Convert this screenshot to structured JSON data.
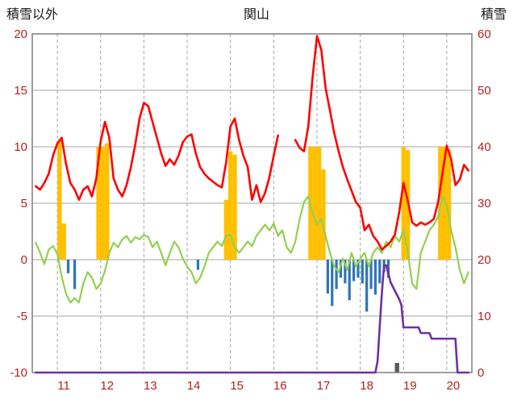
{
  "chart_data": {
    "type": "line+bar combo",
    "title": "関山",
    "left_axis": {
      "label": "積雪以外",
      "min": -10,
      "max": 20,
      "ticks": [
        -10,
        -5,
        0,
        5,
        10,
        15,
        20
      ]
    },
    "right_axis": {
      "label": "積雪",
      "min": 0,
      "max": 60,
      "ticks": [
        0,
        10,
        20,
        30,
        40,
        50,
        60
      ]
    },
    "x_axis": {
      "min": 10.42,
      "max": 20.58,
      "tick_labels": [
        "11",
        "12",
        "13",
        "14",
        "15",
        "16",
        "17",
        "18",
        "19",
        "20"
      ],
      "tick_positions": [
        11,
        12,
        13,
        14,
        15,
        16,
        17,
        18,
        19,
        20
      ],
      "gridlines": [
        11,
        12,
        13,
        14,
        15,
        16,
        17,
        18,
        19,
        20
      ]
    },
    "styles": {
      "grid_color": "#a6a6a6",
      "frame_color": "#7f7f7f",
      "axis_text_color": "#b22222",
      "title_color": "#1a1a1a",
      "background": "#ffffff"
    },
    "series": [
      {
        "name": "orange-bars",
        "type": "bar",
        "axis": "left",
        "color": "#ffc000",
        "base": 0,
        "bar_width": 0.1,
        "points": [
          [
            11.05,
            10.6
          ],
          [
            11.15,
            3.2
          ],
          [
            11.95,
            10.0
          ],
          [
            12.05,
            10.0
          ],
          [
            12.15,
            10.3
          ],
          [
            14.9,
            5.3
          ],
          [
            15.0,
            9.6
          ],
          [
            15.1,
            9.3
          ],
          [
            16.85,
            10.0
          ],
          [
            16.95,
            10.0
          ],
          [
            17.05,
            10.0
          ],
          [
            17.15,
            8.0
          ],
          [
            19.0,
            10.0
          ],
          [
            19.1,
            9.7
          ],
          [
            19.85,
            10.0
          ],
          [
            19.95,
            10.0
          ],
          [
            20.05,
            9.7
          ]
        ]
      },
      {
        "name": "blue-bars",
        "type": "bar",
        "axis": "left",
        "color": "#2e75b6",
        "base": 0,
        "bar_width": 0.06,
        "points": [
          [
            11.25,
            -1.2
          ],
          [
            11.4,
            -2.6
          ],
          [
            14.25,
            -0.9
          ],
          [
            17.25,
            -3.0
          ],
          [
            17.35,
            -4.1
          ],
          [
            17.45,
            -2.6
          ],
          [
            17.55,
            -1.6
          ],
          [
            17.65,
            -2.1
          ],
          [
            17.75,
            -3.6
          ],
          [
            17.85,
            -1.9
          ],
          [
            17.95,
            -1.6
          ],
          [
            18.05,
            -2.1
          ],
          [
            18.15,
            -4.6
          ],
          [
            18.25,
            -2.6
          ],
          [
            18.35,
            -3.1
          ],
          [
            18.45,
            -2.1
          ],
          [
            18.55,
            -1.1
          ],
          [
            18.65,
            -1.6
          ]
        ]
      },
      {
        "name": "gray-marker-bar",
        "type": "bar",
        "axis": "left",
        "color": "#595959",
        "base": -10,
        "bar_width": 0.1,
        "points": [
          [
            18.85,
            -9.15
          ]
        ]
      },
      {
        "name": "green-line",
        "type": "line",
        "axis": "left",
        "color": "#92d050",
        "width": 2.2,
        "x_start": 10.5,
        "x_step": 0.1,
        "values": [
          1.5,
          0.6,
          -0.4,
          0.9,
          1.2,
          0.5,
          -1.5,
          -3.0,
          -3.8,
          -3.4,
          -3.8,
          -2.1,
          -1.1,
          -1.6,
          -2.6,
          -2.1,
          -1.0,
          0.6,
          1.5,
          1.1,
          1.8,
          2.1,
          1.5,
          2.0,
          1.8,
          2.2,
          2.0,
          1.1,
          1.6,
          0.6,
          -0.5,
          0.6,
          1.6,
          1.1,
          0.1,
          -0.6,
          -1.1,
          -2.1,
          -1.6,
          -0.6,
          0.6,
          1.1,
          1.6,
          1.2,
          2.1,
          2.2,
          1.1,
          0.6,
          1.1,
          1.6,
          1.2,
          2.1,
          2.6,
          3.1,
          2.6,
          3.2,
          2.1,
          2.6,
          1.1,
          0.6,
          1.6,
          3.6,
          5.1,
          5.6,
          4.1,
          3.1,
          3.6,
          2.1,
          0.6,
          -0.6,
          -1.1,
          0.1,
          -0.9,
          0.6,
          -0.6,
          0.1,
          0.6,
          -0.6,
          0.6,
          1.1,
          0.6,
          1.6,
          1.1,
          2.1,
          1.6,
          2.6,
          0.6,
          -2.1,
          -2.6,
          0.6,
          1.6,
          2.6,
          3.1,
          3.8,
          5.6,
          4.8,
          2.6,
          1.1,
          -0.9,
          -2.1,
          -1.1
        ]
      },
      {
        "name": "red-line",
        "type": "line",
        "axis": "left",
        "color": "#ff0000",
        "width": 2.6,
        "x_start": 10.5,
        "x_step": 0.1,
        "values": [
          6.5,
          6.2,
          6.8,
          7.6,
          9.2,
          10.3,
          10.8,
          8.5,
          6.8,
          6.2,
          5.3,
          6.2,
          6.5,
          5.6,
          7.2,
          10.5,
          12.2,
          10.8,
          7.2,
          6.2,
          5.6,
          6.6,
          8.2,
          10.2,
          12.5,
          13.9,
          13.6,
          12.2,
          10.8,
          9.4,
          8.3,
          8.9,
          8.4,
          9.2,
          10.4,
          10.9,
          11.1,
          9.4,
          8.2,
          7.6,
          7.2,
          6.9,
          6.6,
          6.4,
          8.6,
          11.8,
          12.5,
          10.6,
          9.2,
          8.2,
          5.3,
          6.6,
          5.1,
          5.9,
          7.3,
          9.2,
          11.0,
          null,
          null,
          null,
          10.6,
          9.9,
          9.6,
          11.8,
          16.2,
          19.8,
          18.6,
          15.2,
          13.2,
          11.2,
          9.6,
          8.2,
          7.1,
          6.1,
          5.1,
          4.6,
          2.6,
          3.1,
          2.1,
          1.6,
          0.9,
          1.2,
          1.6,
          2.2,
          4.2,
          6.8,
          5.2,
          3.3,
          3.0,
          3.3,
          3.1,
          3.3,
          3.6,
          5.1,
          7.6,
          10.1,
          8.9,
          6.6,
          7.1,
          8.4,
          7.9
        ]
      },
      {
        "name": "purple-snow-depth-line",
        "type": "line",
        "axis": "right",
        "color": "#7030a0",
        "width": 2.6,
        "x": [
          10.5,
          18.35,
          18.4,
          18.45,
          18.5,
          18.55,
          18.6,
          18.7,
          18.8,
          18.9,
          18.95,
          19.0,
          19.35,
          19.4,
          19.6,
          19.65,
          20.2,
          20.25,
          20.5
        ],
        "y": [
          0,
          0,
          2,
          8,
          14,
          19,
          19,
          16,
          14.5,
          13,
          12,
          8,
          8,
          7,
          7,
          6,
          6,
          0,
          0
        ]
      }
    ]
  }
}
